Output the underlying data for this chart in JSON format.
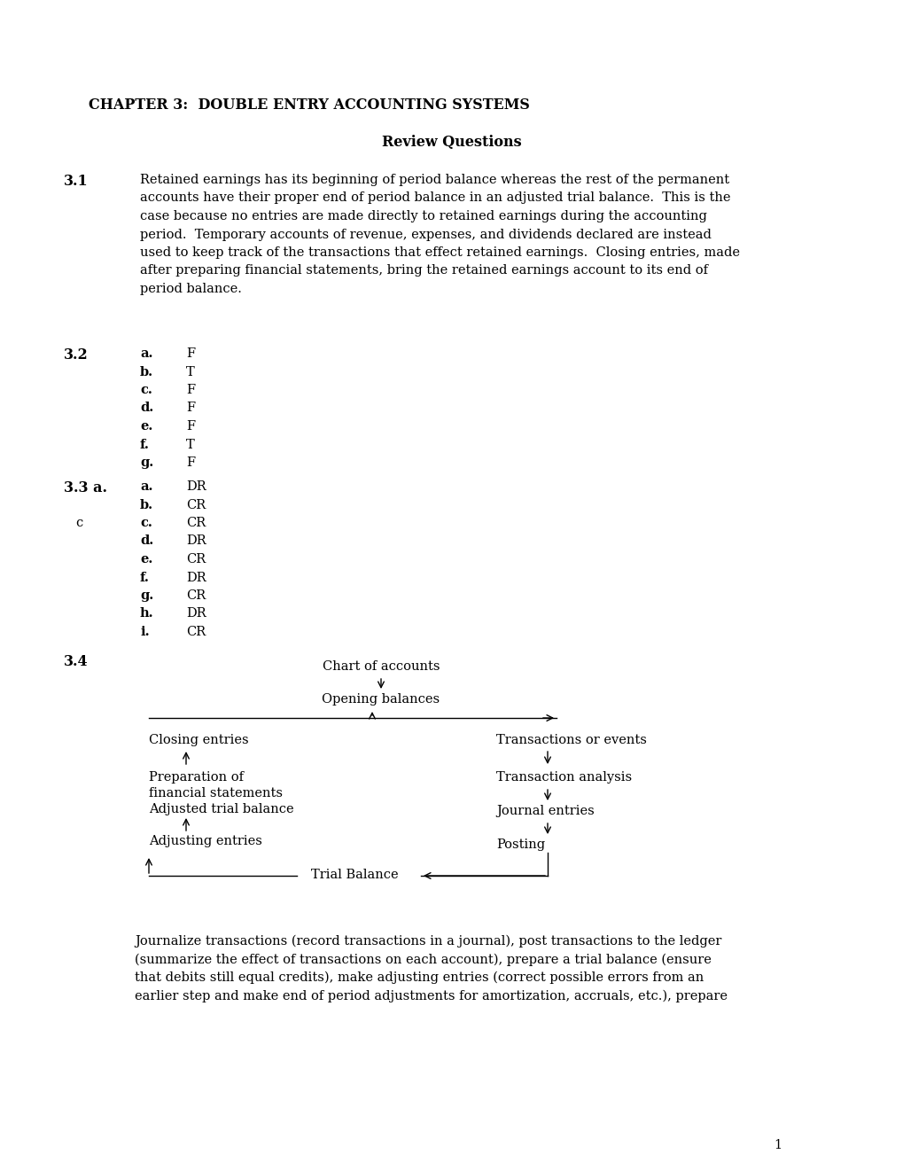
{
  "title": "CHAPTER 3:  DOUBLE ENTRY ACCOUNTING SYSTEMS",
  "subtitle": "Review Questions",
  "bg_color": "#ffffff",
  "text_color": "#000000",
  "section_31_label": "3.1",
  "section_31_text_lines": [
    "Retained earnings has its beginning of period balance whereas the rest of the permanent",
    "accounts have their proper end of period balance in an adjusted trial balance.  This is the",
    "case because no entries are made directly to retained earnings during the accounting",
    "period.  Temporary accounts of revenue, expenses, and dividends declared are instead",
    "used to keep track of the transactions that effect retained earnings.  Closing entries, made",
    "after preparing financial statements, bring the retained earnings account to its end of",
    "period balance."
  ],
  "section_32_label": "3.2",
  "section_32_items": [
    [
      "a.",
      "F"
    ],
    [
      "b.",
      "T"
    ],
    [
      "c.",
      "F"
    ],
    [
      "d.",
      "F"
    ],
    [
      "e.",
      "F"
    ],
    [
      "f.",
      "T"
    ],
    [
      "g.",
      "F"
    ]
  ],
  "section_33_label": "3.3 a.",
  "section_33_label2": "c",
  "section_33_items": [
    [
      "a.",
      "DR"
    ],
    [
      "b.",
      "CR"
    ],
    [
      "c.",
      "CR"
    ],
    [
      "d.",
      "DR"
    ],
    [
      "e.",
      "CR"
    ],
    [
      "f.",
      "DR"
    ],
    [
      "g.",
      "CR"
    ],
    [
      "h.",
      "DR"
    ],
    [
      "i.",
      "CR"
    ]
  ],
  "section_34_label": "3.4",
  "bottom_text_lines": [
    "Journalize transactions (record transactions in a journal), post transactions to the ledger",
    "(summarize the effect of transactions on each account), prepare a trial balance (ensure",
    "that debits still equal credits), make adjusting entries (correct possible errors from an",
    "earlier step and make end of period adjustments for amortization, accruals, etc.), prepare"
  ],
  "page_number": "1"
}
